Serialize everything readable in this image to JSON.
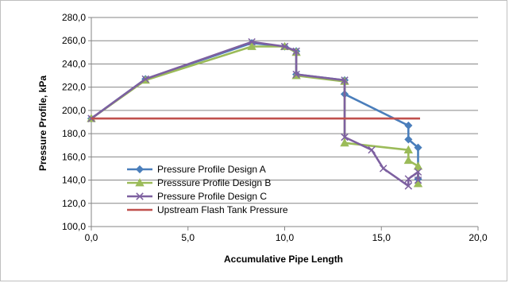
{
  "chart_data": {
    "type": "line",
    "xlabel": "Accumulative Pipe Length",
    "ylabel": "Pressure Profile, kPa",
    "xlim": [
      0,
      20
    ],
    "ylim": [
      100,
      280
    ],
    "x_ticks": [
      0,
      5,
      10,
      15,
      20
    ],
    "x_tick_labels": [
      "0,0",
      "5,0",
      "10,0",
      "15,0",
      "20,0"
    ],
    "y_ticks": [
      100,
      120,
      140,
      160,
      180,
      200,
      220,
      240,
      260,
      280
    ],
    "y_tick_labels": [
      "100,0",
      "120,0",
      "140,0",
      "160,0",
      "180,0",
      "200,0",
      "220,0",
      "240,0",
      "260,0",
      "280,0"
    ],
    "grid": "horizontal",
    "legend_position": "inside-lower-left",
    "series": [
      {
        "name": "Pressure Profile Design A",
        "color": "#4a7ebb",
        "marker": "diamond",
        "points": [
          [
            0,
            193
          ],
          [
            2.8,
            227
          ],
          [
            8.3,
            258
          ],
          [
            10,
            255
          ],
          [
            10.6,
            251
          ],
          [
            10.6,
            231
          ],
          [
            13.1,
            226
          ],
          [
            13.1,
            214
          ],
          [
            16.4,
            187
          ],
          [
            16.4,
            175
          ],
          [
            16.9,
            168
          ],
          [
            16.9,
            141
          ]
        ]
      },
      {
        "name": "Presssure Profile Design B",
        "color": "#9bbb59",
        "marker": "triangle",
        "points": [
          [
            0,
            193
          ],
          [
            2.8,
            226
          ],
          [
            8.3,
            255
          ],
          [
            10,
            255
          ],
          [
            10.6,
            250
          ],
          [
            10.6,
            230
          ],
          [
            13.1,
            225
          ],
          [
            13.1,
            172
          ],
          [
            16.4,
            166
          ],
          [
            16.4,
            157
          ],
          [
            16.9,
            152
          ],
          [
            16.9,
            137
          ]
        ]
      },
      {
        "name": "Pressure Profile Design C",
        "color": "#7d60a0",
        "marker": "x",
        "points": [
          [
            0,
            193
          ],
          [
            2.8,
            227
          ],
          [
            8.3,
            259
          ],
          [
            10,
            255
          ],
          [
            10.6,
            251
          ],
          [
            10.6,
            231
          ],
          [
            13.1,
            226
          ],
          [
            13.1,
            177
          ],
          [
            14.5,
            166
          ],
          [
            15.1,
            150
          ],
          [
            16.4,
            135
          ],
          [
            16.4,
            141
          ],
          [
            16.9,
            147
          ],
          [
            16.9,
            140
          ]
        ]
      },
      {
        "name": "Upstream Flash Tank Pressure",
        "color": "#c0504d",
        "marker": "none",
        "points": [
          [
            0,
            193
          ],
          [
            17,
            193
          ]
        ]
      }
    ]
  }
}
